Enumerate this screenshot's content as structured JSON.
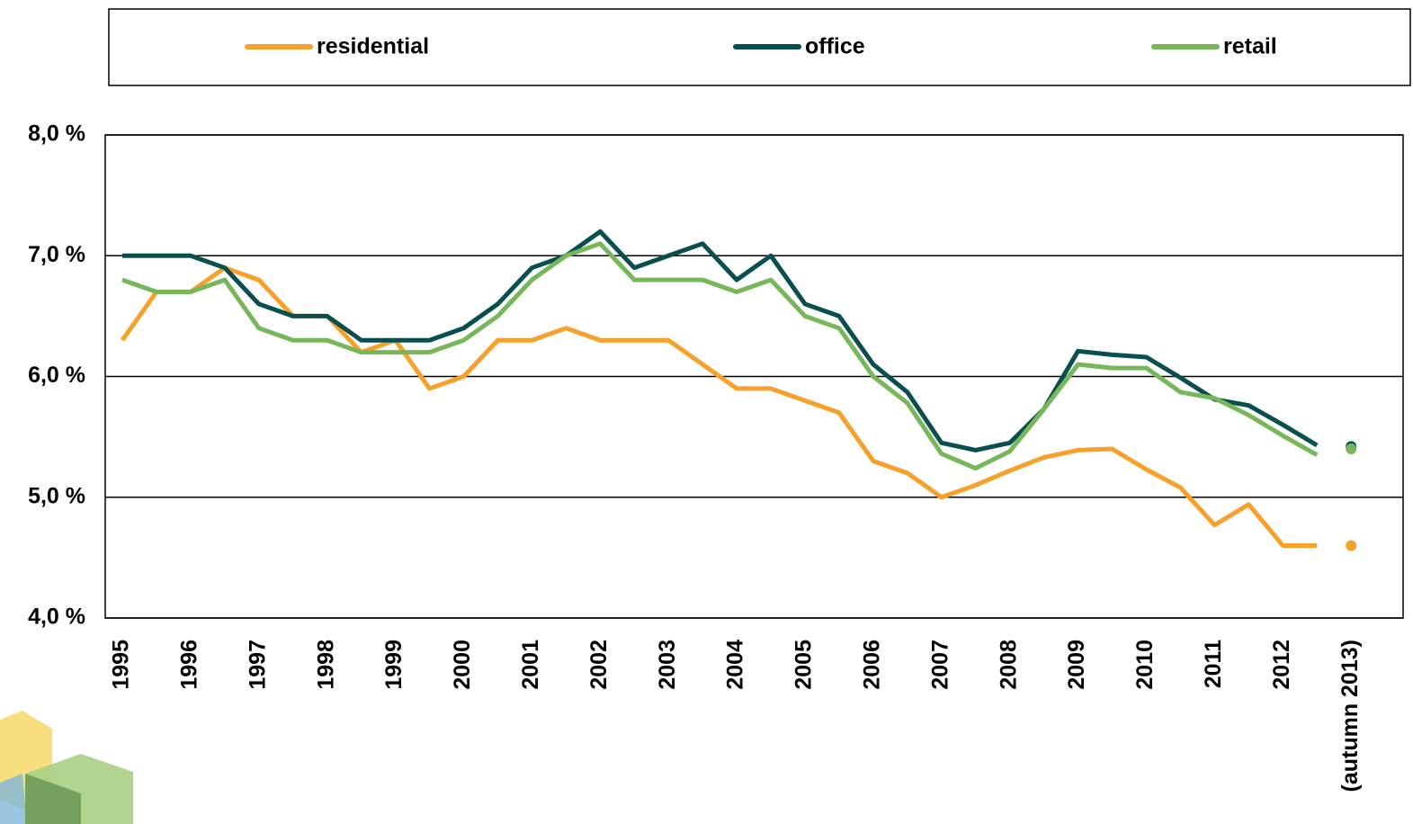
{
  "chart_data": {
    "type": "line",
    "categories": [
      "1995",
      null,
      "1996",
      null,
      "1997",
      null,
      "1998",
      null,
      "1999",
      null,
      "2000",
      null,
      "2001",
      null,
      "2002",
      null,
      "2003",
      null,
      "2004",
      null,
      "2005",
      null,
      "2006",
      null,
      "2007",
      null,
      "2008",
      null,
      "2009",
      null,
      "2010",
      null,
      "2011",
      null,
      "2012",
      null,
      "(autumn 2013)"
    ],
    "series": [
      {
        "name": "residential",
        "color": "#f7a12b",
        "values": [
          6.3,
          6.7,
          6.7,
          6.9,
          6.8,
          6.5,
          6.5,
          6.2,
          6.3,
          5.9,
          6.0,
          6.3,
          6.3,
          6.4,
          6.3,
          6.3,
          6.3,
          6.1,
          5.9,
          5.9,
          5.8,
          5.7,
          5.3,
          5.2,
          5.0,
          5.1,
          5.22,
          5.33,
          5.39,
          5.4,
          5.23,
          5.08,
          4.77,
          4.94,
          4.6,
          4.6,
          4.6
        ]
      },
      {
        "name": "office",
        "color": "#0a4f4f",
        "values": [
          7.0,
          7.0,
          7.0,
          6.9,
          6.6,
          6.5,
          6.5,
          6.3,
          6.3,
          6.3,
          6.4,
          6.6,
          6.9,
          7.0,
          7.2,
          6.9,
          7.0,
          7.1,
          6.8,
          7.0,
          6.6,
          6.5,
          6.1,
          5.87,
          5.45,
          5.39,
          5.45,
          5.73,
          6.21,
          6.18,
          6.16,
          5.99,
          5.81,
          5.76,
          5.6,
          5.43,
          5.42
        ]
      },
      {
        "name": "retail",
        "color": "#77b75a",
        "values": [
          6.8,
          6.7,
          6.7,
          6.8,
          6.4,
          6.3,
          6.3,
          6.2,
          6.2,
          6.2,
          6.3,
          6.5,
          6.8,
          7.0,
          7.1,
          6.8,
          6.8,
          6.8,
          6.7,
          6.8,
          6.5,
          6.4,
          6.0,
          5.78,
          5.36,
          5.24,
          5.38,
          5.73,
          6.1,
          6.07,
          6.07,
          5.87,
          5.82,
          5.68,
          5.51,
          5.35,
          5.4
        ]
      }
    ],
    "separate_last_point": true,
    "ylim": [
      4.0,
      8.0
    ],
    "yticks": [
      {
        "value": 4.0,
        "label": "4,0 %"
      },
      {
        "value": 5.0,
        "label": "5,0 %"
      },
      {
        "value": 6.0,
        "label": "6,0 %"
      },
      {
        "value": 7.0,
        "label": "7,0 %"
      },
      {
        "value": 8.0,
        "label": "8,0 %"
      }
    ],
    "grid": true,
    "legend": "top"
  }
}
